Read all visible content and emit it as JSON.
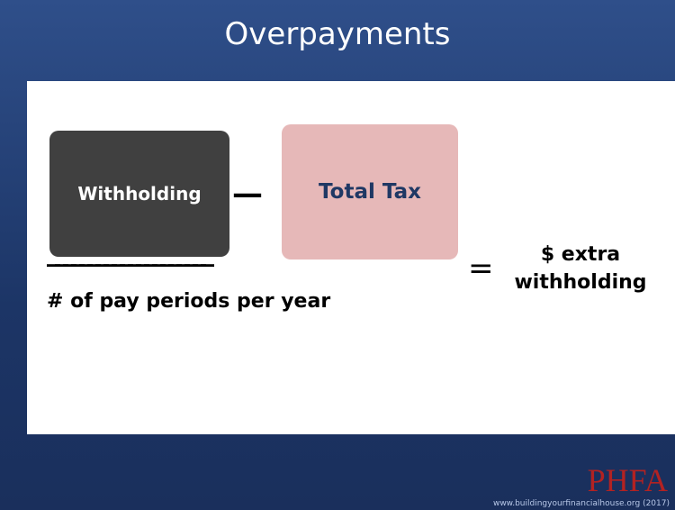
{
  "title": "Overpayments",
  "formula": {
    "left_box": "Withholding",
    "operator": "—",
    "right_box": "Total Tax",
    "fraction_bar": "____________________",
    "denominator": "# of pay periods per year",
    "equals": "=",
    "result": "$ extra withholding"
  },
  "footer": {
    "logo": "PHFA",
    "url": "www.buildingyourfinancialhouse.org",
    "year": "(2017)"
  }
}
